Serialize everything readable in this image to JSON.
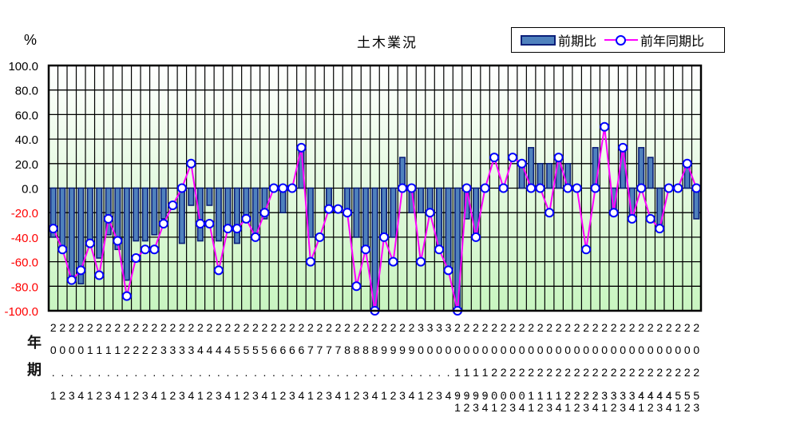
{
  "chart_data": {
    "type": "bar",
    "title": "土木業況",
    "ylabel": "%",
    "xlabel": "",
    "row_labels": [
      "年",
      "期"
    ],
    "ylim": [
      -100,
      100
    ],
    "yticks": [
      "100.0",
      "80.0",
      "60.0",
      "40.0",
      "20.0",
      "0.0",
      "-20.0",
      "-40.0",
      "-60.0",
      "-80.0",
      "-100.0"
    ],
    "grid": true,
    "legend_position": "top-right",
    "categories": [
      "20.1",
      "20.2",
      "20.3",
      "20.4",
      "21.1",
      "21.2",
      "21.3",
      "21.4",
      "22.1",
      "22.2",
      "22.3",
      "22.4",
      "23.1",
      "23.2",
      "23.3",
      "23.4",
      "24.1",
      "24.2",
      "24.3",
      "24.4",
      "25.1",
      "25.2",
      "25.3",
      "25.4",
      "26.1",
      "26.2",
      "26.3",
      "26.4",
      "27.1",
      "27.2",
      "27.3",
      "27.4",
      "28.1",
      "28.2",
      "28.3",
      "28.4",
      "29.1",
      "29.2",
      "29.3",
      "29.4",
      "30.1",
      "30.2",
      "30.3",
      "30.4",
      "2019.1",
      "2019.2",
      "2019.3",
      "2019.4",
      "2020.1",
      "2020.2",
      "2020.3",
      "2020.4",
      "2021.1",
      "2021.2",
      "2021.3",
      "2021.4",
      "2022.1",
      "2022.2",
      "2022.3",
      "2022.4",
      "2023.1",
      "2023.2",
      "2023.3",
      "2023.4",
      "2024.1",
      "2024.2",
      "2024.3",
      "2024.4",
      "2025.1",
      "2025.2",
      "2025.3"
    ],
    "series": [
      {
        "name": "前期比",
        "type": "bar",
        "color": "#4f81bd",
        "border": "#0a1f7a",
        "values": [
          -40,
          -50,
          -75,
          -78,
          -43,
          -57,
          -38,
          -50,
          -75,
          -43,
          -43,
          -38,
          -25,
          0,
          -45,
          -14,
          -43,
          -14,
          -43,
          -33,
          -45,
          -25,
          -38,
          -25,
          0,
          -20,
          0,
          33,
          -40,
          0,
          -17,
          0,
          -20,
          -40,
          -50,
          -100,
          -40,
          -40,
          25,
          -20,
          -20,
          -20,
          -50,
          -67,
          -100,
          -25,
          -40,
          0,
          0,
          0,
          0,
          20,
          33,
          20,
          20,
          25,
          20,
          0,
          0,
          33,
          0,
          -20,
          33,
          -25,
          33,
          25,
          -33,
          0,
          0,
          20,
          -25
        ]
      },
      {
        "name": "前年同期比",
        "type": "line",
        "color": "#ff00ff",
        "marker_color": "#0000ff",
        "values": [
          -33,
          -50,
          -75,
          -67,
          -45,
          -71,
          -25,
          -43,
          -88,
          -57,
          -50,
          -50,
          -29,
          -14,
          0,
          20,
          -29,
          -29,
          -67,
          -33,
          -33,
          -25,
          -40,
          -20,
          0,
          0,
          0,
          33,
          -60,
          -40,
          -17,
          -17,
          -20,
          -80,
          -50,
          -100,
          -40,
          -60,
          0,
          0,
          -60,
          -20,
          -50,
          -67,
          -100,
          0,
          -40,
          0,
          25,
          0,
          25,
          20,
          0,
          0,
          -20,
          25,
          0,
          0,
          -50,
          0,
          50,
          -20,
          33,
          -25,
          0,
          -25,
          -33,
          0,
          0,
          20,
          0
        ]
      }
    ]
  },
  "colors": {
    "negative_tick": "#ff0000",
    "positive_tick": "#000000",
    "plot_bg_top": "#ffffff",
    "plot_bg_bottom": "#c8f5c0"
  }
}
